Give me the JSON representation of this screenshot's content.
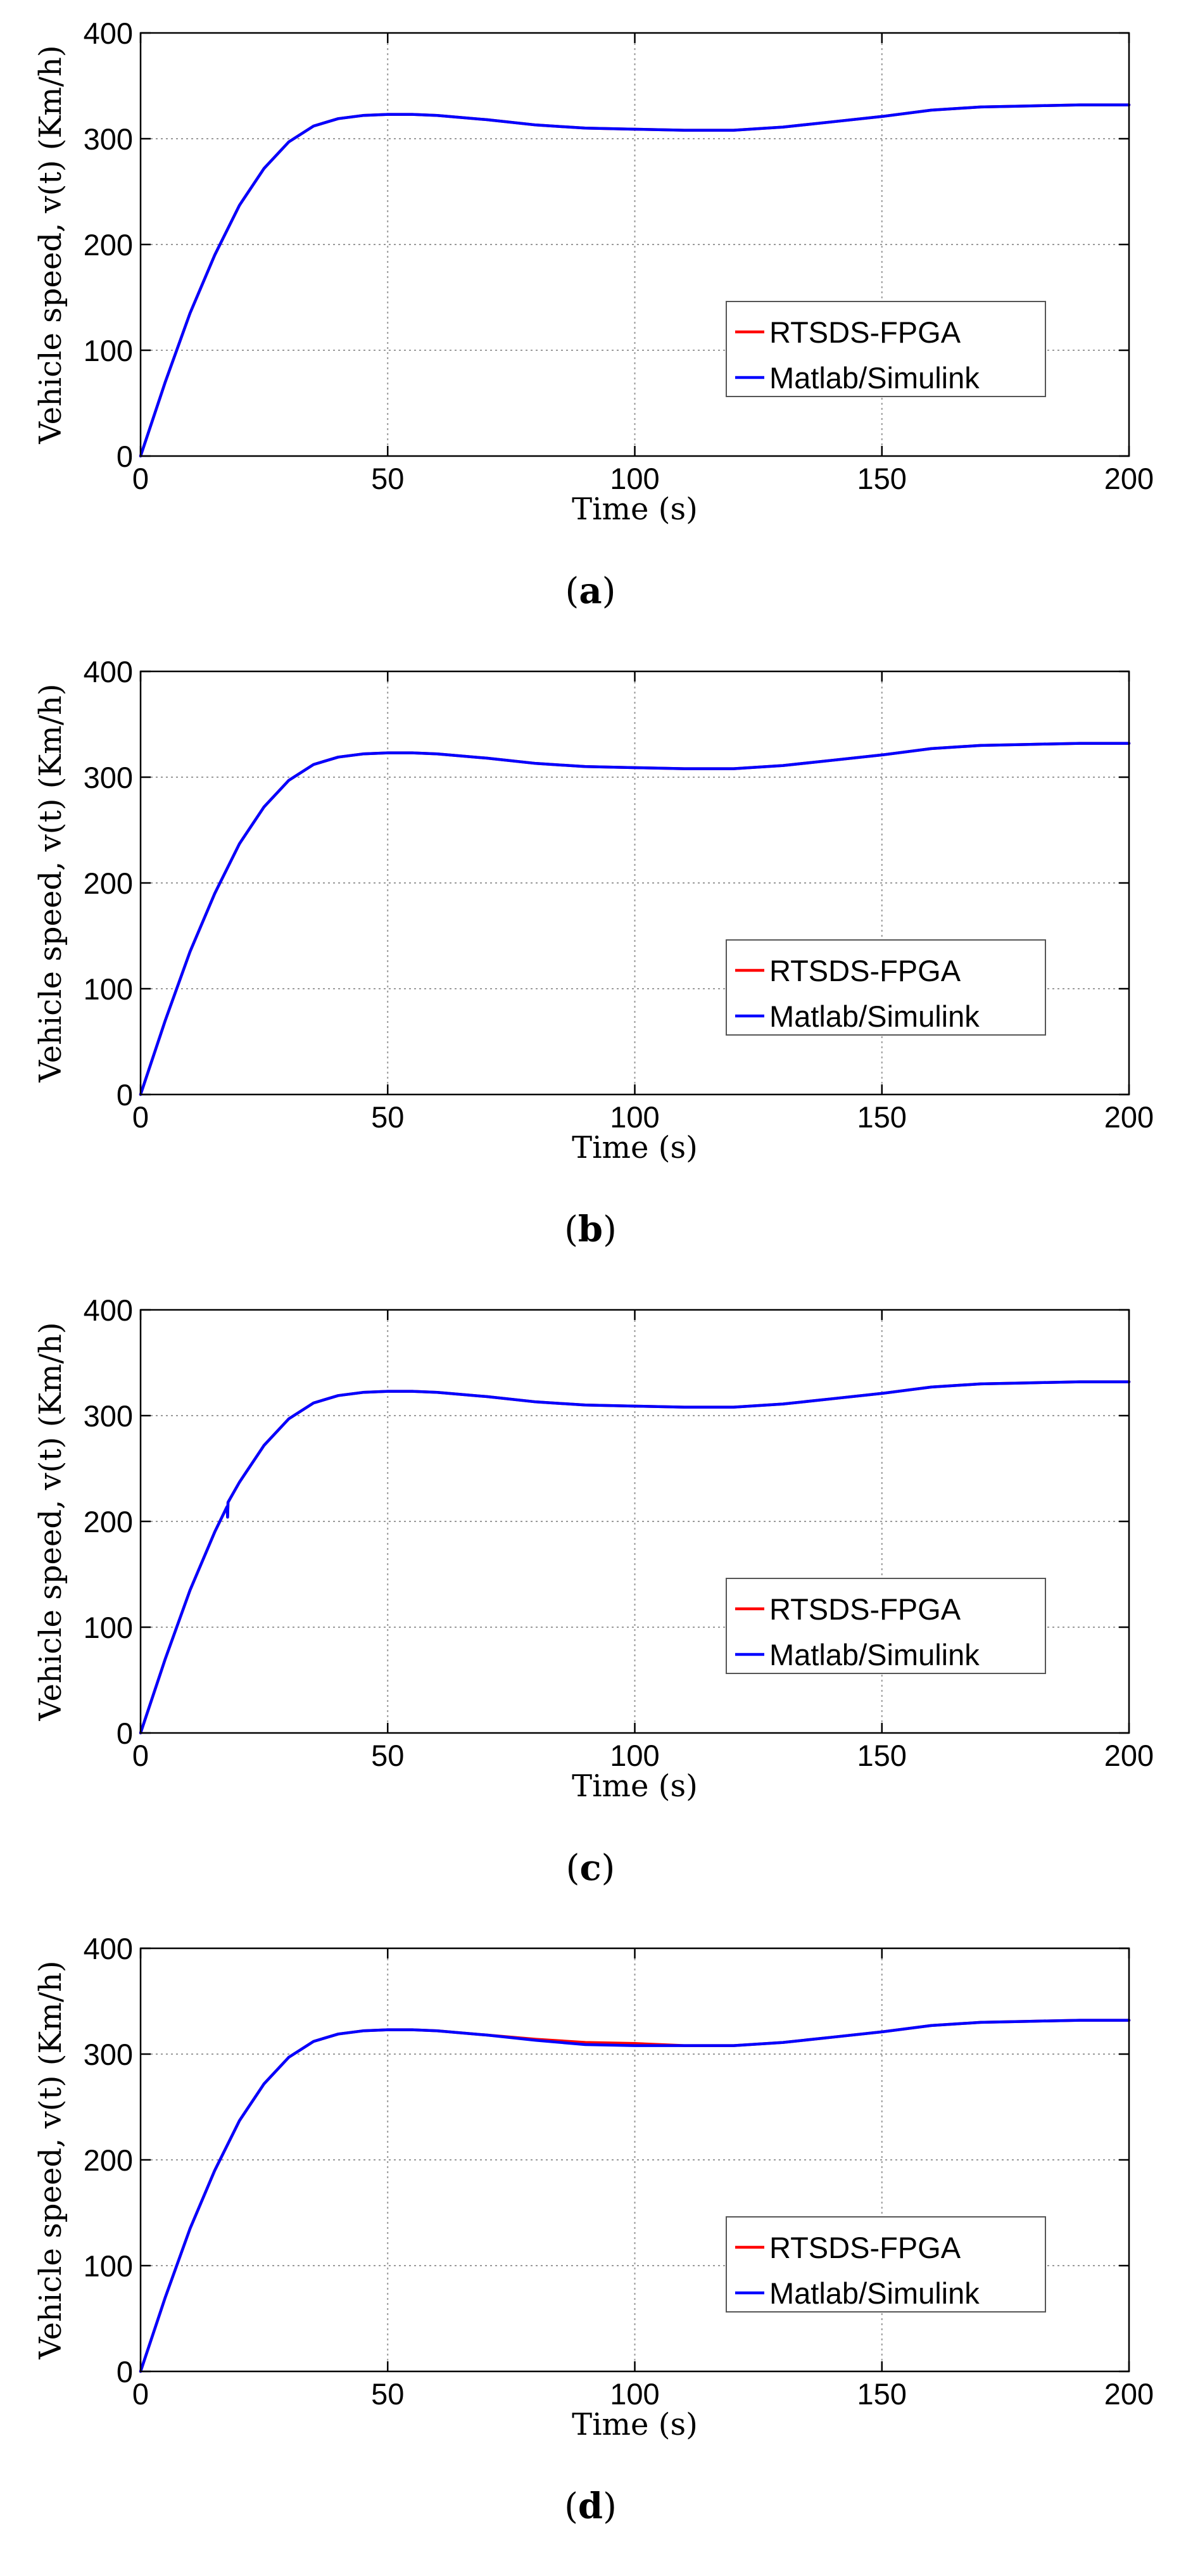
{
  "chart_data": [
    {
      "type": "line",
      "caption_letter": "a",
      "xlabel": "Time (s)",
      "ylabel": "Vehicle speed, v(t) (Km/h)",
      "xlim": [
        0,
        200
      ],
      "ylim": [
        0,
        400
      ],
      "xticks": [
        "0",
        "50",
        "100",
        "150",
        "200"
      ],
      "yticks": [
        "0",
        "100",
        "200",
        "300",
        "400"
      ],
      "grid": true,
      "legend_position": "lower-right",
      "series": [
        {
          "name": "RTSDS-FPGA",
          "color": "#ff0000",
          "x": [
            0,
            5,
            10,
            15,
            20,
            25,
            30,
            35,
            40,
            45,
            50,
            55,
            60,
            70,
            80,
            90,
            100,
            110,
            120,
            130,
            140,
            150,
            160,
            170,
            180,
            190,
            200
          ],
          "y": [
            0,
            70,
            135,
            190,
            237,
            272,
            297,
            312,
            319,
            322,
            323,
            323,
            322,
            318,
            313,
            310,
            309,
            308,
            308,
            311,
            316,
            321,
            327,
            330,
            331,
            332,
            332
          ]
        },
        {
          "name": "Matlab/Simulink",
          "color": "#0000ff",
          "x": [
            0,
            5,
            10,
            15,
            20,
            25,
            30,
            35,
            40,
            45,
            50,
            55,
            60,
            70,
            80,
            90,
            100,
            110,
            120,
            130,
            140,
            150,
            160,
            170,
            180,
            190,
            200
          ],
          "y": [
            0,
            70,
            135,
            190,
            237,
            272,
            297,
            312,
            319,
            322,
            323,
            323,
            322,
            318,
            313,
            310,
            309,
            308,
            308,
            311,
            316,
            321,
            327,
            330,
            331,
            332,
            332
          ]
        }
      ]
    },
    {
      "type": "line",
      "caption_letter": "b",
      "xlabel": "Time (s)",
      "ylabel": "Vehicle speed, v(t) (Km/h)",
      "xlim": [
        0,
        200
      ],
      "ylim": [
        0,
        400
      ],
      "xticks": [
        "0",
        "50",
        "100",
        "150",
        "200"
      ],
      "yticks": [
        "0",
        "100",
        "200",
        "300",
        "400"
      ],
      "grid": true,
      "legend_position": "lower-right",
      "series": [
        {
          "name": "RTSDS-FPGA",
          "color": "#ff0000",
          "x": [
            0,
            5,
            10,
            15,
            20,
            25,
            30,
            35,
            40,
            45,
            50,
            55,
            60,
            70,
            80,
            90,
            100,
            110,
            120,
            130,
            140,
            150,
            160,
            170,
            180,
            190,
            200
          ],
          "y": [
            0,
            70,
            135,
            190,
            237,
            272,
            297,
            312,
            319,
            322,
            323,
            323,
            322,
            318,
            313,
            310,
            309,
            308,
            308,
            311,
            316,
            321,
            327,
            330,
            331,
            332,
            332
          ]
        },
        {
          "name": "Matlab/Simulink",
          "color": "#0000ff",
          "x": [
            0,
            5,
            10,
            15,
            20,
            25,
            30,
            35,
            40,
            45,
            50,
            55,
            60,
            70,
            80,
            90,
            100,
            110,
            120,
            130,
            140,
            150,
            160,
            170,
            180,
            190,
            200
          ],
          "y": [
            0,
            70,
            135,
            190,
            237,
            272,
            297,
            312,
            319,
            322,
            323,
            323,
            322,
            318,
            313,
            310,
            309,
            308,
            308,
            311,
            316,
            321,
            327,
            330,
            331,
            332,
            332
          ]
        }
      ]
    },
    {
      "type": "line",
      "caption_letter": "c",
      "xlabel": "Time (s)",
      "ylabel": "Vehicle speed, v(t) (Km/h)",
      "xlim": [
        0,
        200
      ],
      "ylim": [
        0,
        400
      ],
      "xticks": [
        "0",
        "50",
        "100",
        "150",
        "200"
      ],
      "yticks": [
        "0",
        "100",
        "200",
        "300",
        "400"
      ],
      "grid": true,
      "legend_position": "lower-right",
      "series": [
        {
          "name": "RTSDS-FPGA",
          "color": "#ff0000",
          "x": [
            0,
            5,
            10,
            15,
            17.5,
            17.6,
            17.7,
            20,
            25,
            30,
            35,
            40,
            45,
            50,
            55,
            60,
            70,
            80,
            90,
            100,
            110,
            120,
            130,
            140,
            150,
            160,
            170,
            180,
            190,
            200
          ],
          "y": [
            0,
            70,
            135,
            190,
            214,
            204,
            218,
            237,
            272,
            297,
            312,
            319,
            322,
            323,
            323,
            322,
            318,
            313,
            310,
            309,
            308,
            308,
            311,
            316,
            321,
            327,
            330,
            331,
            332,
            332
          ]
        },
        {
          "name": "Matlab/Simulink",
          "color": "#0000ff",
          "x": [
            0,
            5,
            10,
            15,
            17.5,
            17.6,
            17.7,
            20,
            25,
            30,
            35,
            40,
            45,
            50,
            55,
            60,
            70,
            80,
            90,
            100,
            110,
            120,
            130,
            140,
            150,
            160,
            170,
            180,
            190,
            200
          ],
          "y": [
            0,
            70,
            135,
            190,
            214,
            204,
            218,
            237,
            272,
            297,
            312,
            319,
            322,
            323,
            323,
            322,
            318,
            313,
            310,
            309,
            308,
            308,
            311,
            316,
            321,
            327,
            330,
            331,
            332,
            332
          ]
        }
      ]
    },
    {
      "type": "line",
      "caption_letter": "d",
      "xlabel": "Time (s)",
      "ylabel": "Vehicle speed, v(t) (Km/h)",
      "xlim": [
        0,
        200
      ],
      "ylim": [
        0,
        400
      ],
      "xticks": [
        "0",
        "50",
        "100",
        "150",
        "200"
      ],
      "yticks": [
        "0",
        "100",
        "200",
        "300",
        "400"
      ],
      "grid": true,
      "legend_position": "lower-right",
      "series": [
        {
          "name": "RTSDS-FPGA",
          "color": "#ff0000",
          "x": [
            0,
            5,
            10,
            15,
            20,
            25,
            30,
            35,
            40,
            45,
            50,
            55,
            60,
            70,
            80,
            90,
            100,
            110,
            120,
            130,
            140,
            150,
            160,
            170,
            180,
            190,
            200
          ],
          "y": [
            0,
            70,
            135,
            190,
            237,
            272,
            297,
            312,
            319,
            322,
            323,
            323,
            322,
            318,
            314,
            311,
            310,
            308,
            308,
            311,
            316,
            321,
            327,
            330,
            331,
            332,
            332
          ]
        },
        {
          "name": "Matlab/Simulink",
          "color": "#0000ff",
          "x": [
            0,
            5,
            10,
            15,
            20,
            25,
            30,
            35,
            40,
            45,
            50,
            55,
            60,
            70,
            80,
            90,
            100,
            110,
            120,
            130,
            140,
            150,
            160,
            170,
            180,
            190,
            200
          ],
          "y": [
            0,
            70,
            135,
            190,
            237,
            272,
            297,
            312,
            319,
            322,
            323,
            323,
            322,
            318,
            313,
            309,
            308,
            308,
            308,
            311,
            316,
            321,
            327,
            330,
            331,
            332,
            332
          ]
        }
      ]
    }
  ]
}
